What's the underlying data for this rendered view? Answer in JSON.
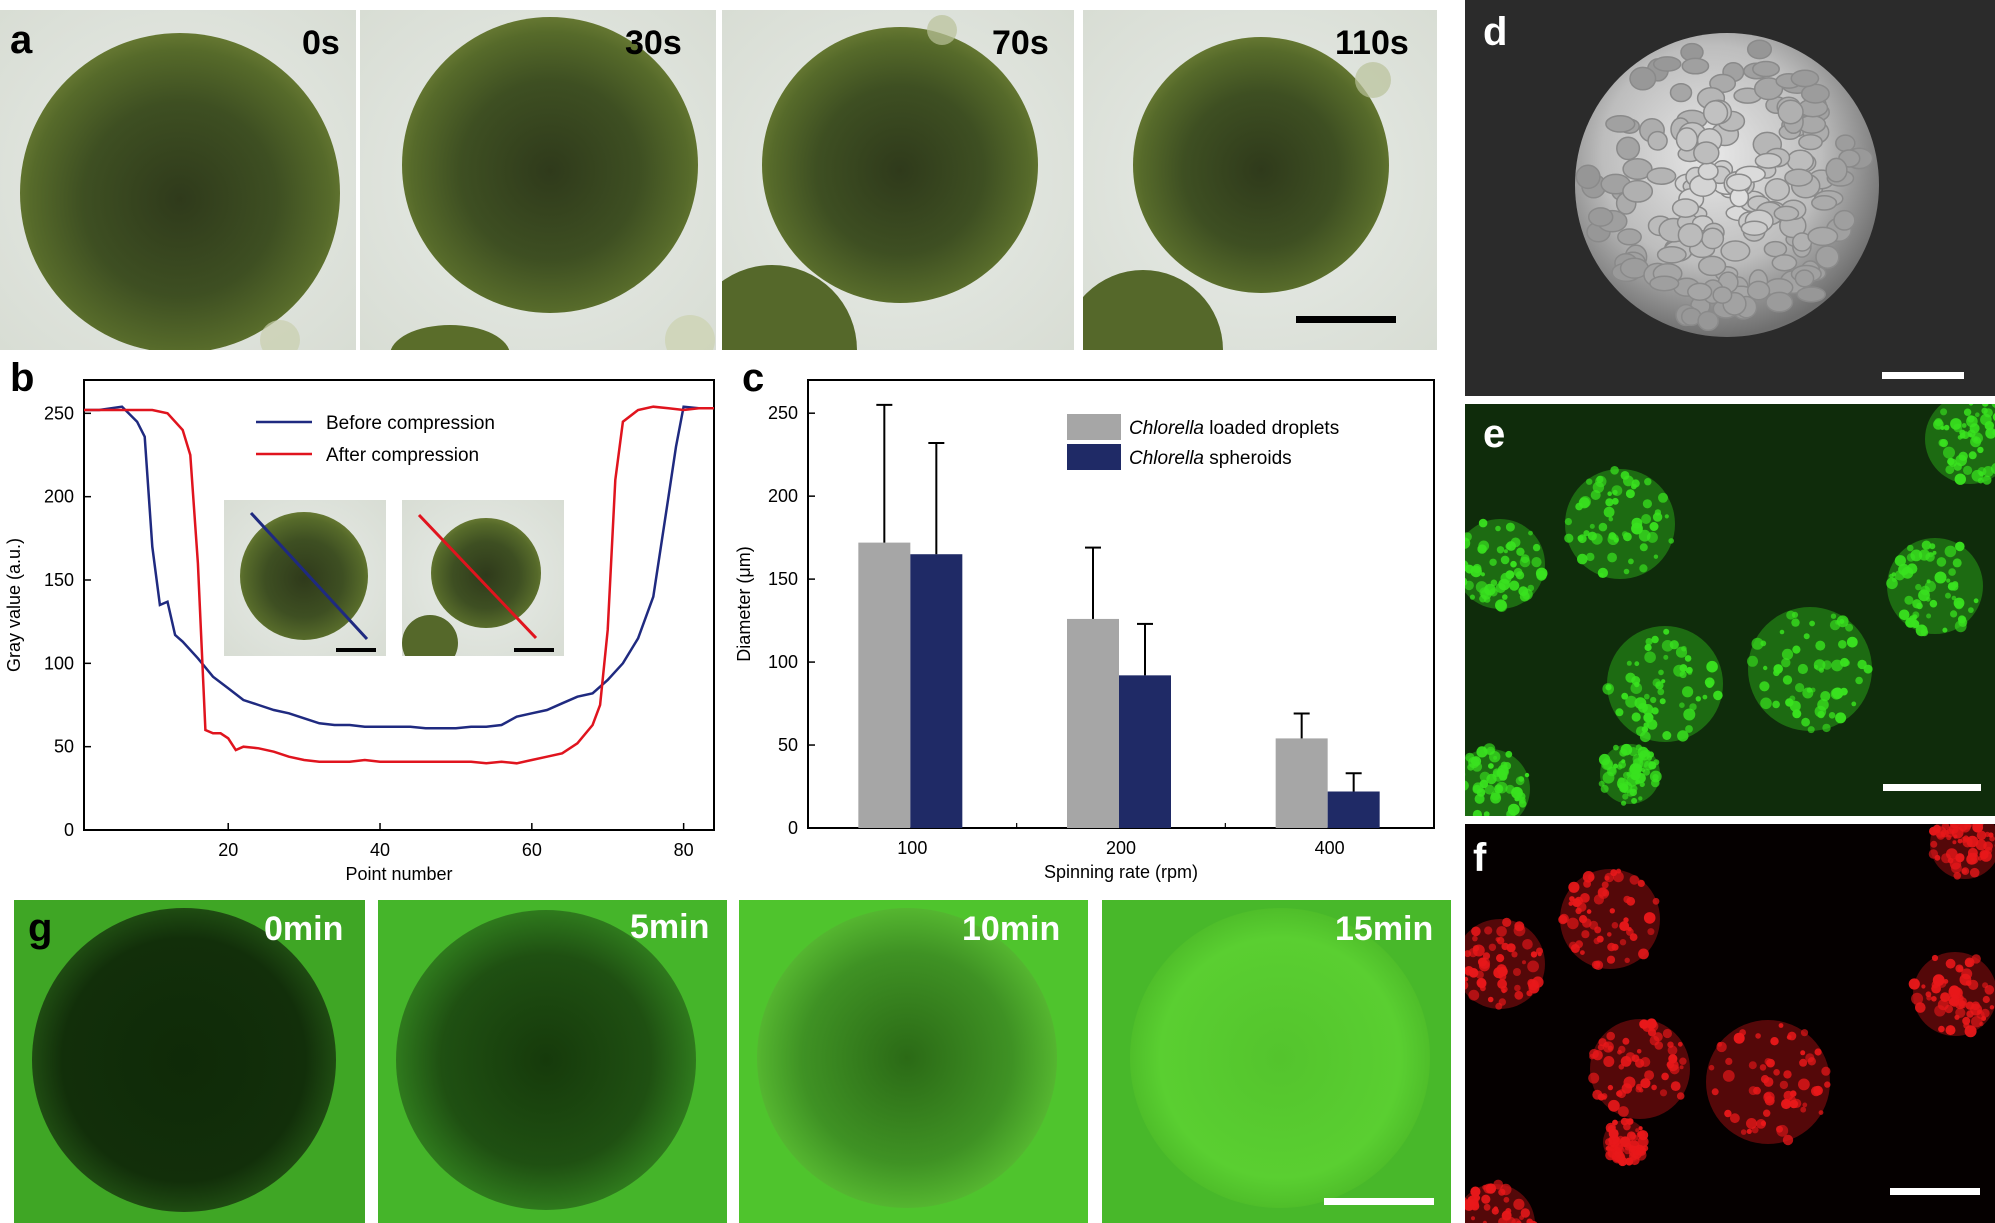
{
  "panel_a": {
    "letter": "a",
    "times": [
      "0s",
      "30s",
      "70s",
      "110s"
    ]
  },
  "panel_b": {
    "letter": "b"
  },
  "panel_c": {
    "letter": "c"
  },
  "panel_d": {
    "letter": "d"
  },
  "panel_e": {
    "letter": "e"
  },
  "panel_f": {
    "letter": "f"
  },
  "panel_g": {
    "letter": "g",
    "times": [
      "0min",
      "5min",
      "10min",
      "15min"
    ]
  },
  "colors": {
    "before_line": "#1f2a80",
    "after_line": "#e0141e",
    "bar_gray": "#a6a6a6",
    "bar_navy": "#1f2a66"
  },
  "chart_data": [
    {
      "type": "line",
      "xlabel": "Point number",
      "ylabel": "Gray value (a.u.)",
      "xlim": [
        1,
        84
      ],
      "ylim": [
        0,
        270
      ],
      "xticks": [
        20,
        40,
        60,
        80
      ],
      "yticks": [
        0,
        50,
        100,
        150,
        200,
        250
      ],
      "legend_placement": "top-center",
      "series": [
        {
          "name": "Before compression",
          "color": "#1f2a80",
          "x": [
            1,
            3,
            6,
            8,
            9,
            10,
            11,
            12,
            13,
            14,
            16,
            18,
            20,
            22,
            24,
            26,
            28,
            30,
            32,
            34,
            36,
            38,
            40,
            42,
            44,
            46,
            48,
            50,
            52,
            54,
            56,
            58,
            60,
            62,
            64,
            66,
            68,
            70,
            72,
            74,
            76,
            77,
            78,
            79,
            80,
            82,
            84
          ],
          "y": [
            252,
            252,
            254,
            245,
            236,
            170,
            135,
            137,
            117,
            113,
            103,
            92,
            85,
            78,
            75,
            72,
            70,
            67,
            64,
            63,
            63,
            62,
            62,
            62,
            62,
            61,
            61,
            61,
            62,
            62,
            63,
            68,
            70,
            72,
            76,
            80,
            82,
            90,
            100,
            115,
            140,
            170,
            200,
            230,
            254,
            253,
            253
          ]
        },
        {
          "name": "After compression",
          "color": "#e0141e",
          "x": [
            1,
            3,
            6,
            8,
            10,
            12,
            14,
            15,
            16,
            17,
            18,
            19,
            20,
            21,
            22,
            24,
            26,
            28,
            30,
            32,
            34,
            36,
            38,
            40,
            42,
            44,
            46,
            48,
            50,
            52,
            54,
            56,
            58,
            60,
            62,
            64,
            66,
            68,
            69,
            70,
            71,
            72,
            74,
            76,
            78,
            80,
            82,
            84
          ],
          "y": [
            252,
            252,
            252,
            252,
            252,
            250,
            240,
            225,
            160,
            60,
            58,
            58,
            55,
            48,
            50,
            49,
            47,
            44,
            42,
            41,
            41,
            41,
            42,
            41,
            41,
            41,
            41,
            41,
            41,
            41,
            40,
            41,
            40,
            42,
            44,
            46,
            52,
            63,
            75,
            120,
            210,
            245,
            252,
            254,
            253,
            252,
            253,
            253
          ]
        }
      ]
    },
    {
      "type": "bar",
      "xlabel": "Spinning rate (rpm)",
      "ylabel": "Diameter (μm)",
      "ylim": [
        0,
        270
      ],
      "yticks": [
        0,
        50,
        100,
        150,
        200,
        250
      ],
      "categories": [
        "100",
        "200",
        "400"
      ],
      "legend_placement": "top-right",
      "series": [
        {
          "name_italic": "Chlorella",
          "name_rest": " loaded droplets",
          "color": "#a6a6a6",
          "values": [
            172,
            126,
            54
          ],
          "errors": [
            83,
            43,
            15
          ]
        },
        {
          "name_italic": "Chlorella",
          "name_rest": " spheroids",
          "color": "#1f2a66",
          "values": [
            165,
            92,
            22
          ],
          "errors": [
            67,
            31,
            11
          ]
        }
      ]
    }
  ]
}
